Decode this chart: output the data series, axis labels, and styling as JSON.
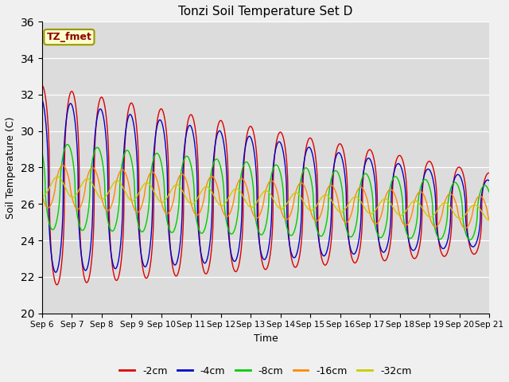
{
  "title": "Tonzi Soil Temperature Set D",
  "xlabel": "Time",
  "ylabel": "Soil Temperature (C)",
  "ylim": [
    20,
    36
  ],
  "annotation": "TZ_fmet",
  "bg_color": "#dcdcdc",
  "legend_labels": [
    "-2cm",
    "-4cm",
    "-8cm",
    "-16cm",
    "-32cm"
  ],
  "legend_colors": [
    "#dd0000",
    "#0000cc",
    "#00cc00",
    "#ff8800",
    "#cccc00"
  ],
  "x_tick_labels": [
    "Sep 6",
    "Sep 7",
    "Sep 8",
    "Sep 9",
    "Sep 10",
    "Sep 11",
    "Sep 12",
    "Sep 13",
    "Sep 14",
    "Sep 15",
    "Sep 16",
    "Sep 17",
    "Sep 18",
    "Sep 19",
    "Sep 20",
    "Sep 21"
  ],
  "num_days": 15,
  "points_per_day": 288,
  "figsize": [
    6.4,
    4.8
  ],
  "dpi": 100
}
